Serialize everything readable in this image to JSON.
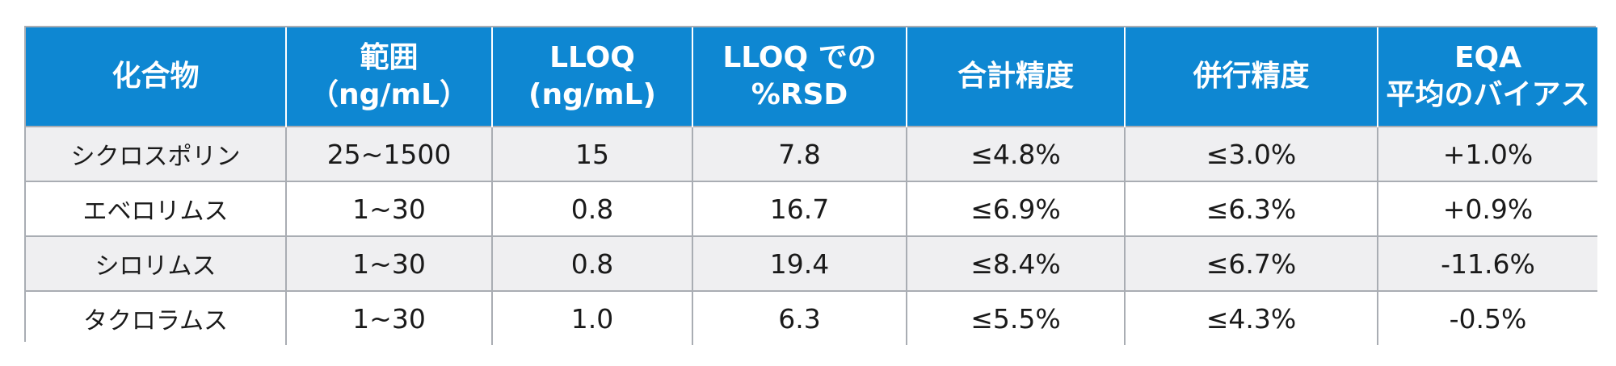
{
  "table": {
    "headers": [
      "化合物",
      "範囲\n（ng/mL）",
      "LLOQ\n(ng/mL)",
      "LLOQ での\n%RSD",
      "合計精度",
      "併行精度",
      "EQA\n平均のバイアス"
    ],
    "rows": [
      [
        "シクロスポリン",
        "25~1500",
        "15",
        "7.8",
        "≤4.8%",
        "≤3.0%",
        "+1.0%"
      ],
      [
        "エベロリムス",
        "1~30",
        "0.8",
        "16.7",
        "≤6.9%",
        "≤6.3%",
        "+0.9%"
      ],
      [
        "シロリムス",
        "1~30",
        "0.8",
        "19.4",
        "≤8.4%",
        "≤6.7%",
        "-11.6%"
      ],
      [
        "タクロラムス",
        "1~30",
        "1.0",
        "6.3",
        "≤5.5%",
        "≤4.3%",
        "-0.5%"
      ]
    ]
  },
  "colors": {
    "header_bg": "#0e87d2",
    "header_text": "#ffffff",
    "row_alt_bg": "#efeff1",
    "border": "#a9adb3"
  }
}
